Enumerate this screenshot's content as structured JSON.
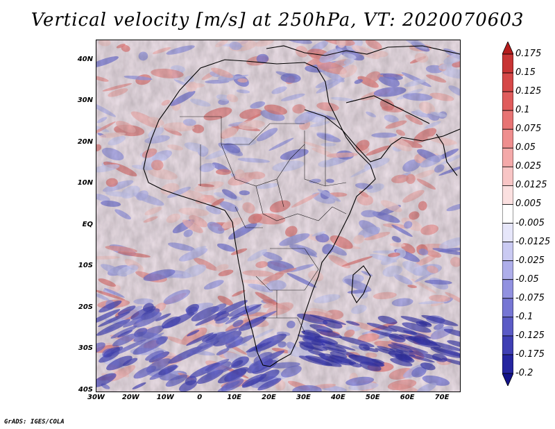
{
  "title": "Vertical velocity [m/s] at 250hPa, VT: 2020070603",
  "credit": "GrADS: IGES/COLA",
  "map": {
    "projection": "latlon",
    "lon_range": [
      -30,
      75
    ],
    "lat_range": [
      -40,
      45
    ],
    "lon_ticks": [
      "30W",
      "20W",
      "10W",
      "0",
      "10E",
      "20E",
      "30E",
      "40E",
      "50E",
      "60E",
      "70E"
    ],
    "lat_ticks": [
      "40S",
      "30S",
      "20S",
      "10S",
      "EQ",
      "10N",
      "20N",
      "30N",
      "40N"
    ],
    "lon_values": [
      -30,
      -20,
      -10,
      0,
      10,
      20,
      30,
      40,
      50,
      60,
      70
    ],
    "lat_values": [
      -40,
      -30,
      -20,
      -10,
      0,
      10,
      20,
      30,
      40
    ]
  },
  "colorbar": {
    "labels": [
      "0.175",
      "0.15",
      "0.125",
      "0.1",
      "0.075",
      "0.05",
      "0.025",
      "0.0125",
      "0.005",
      "-0.005",
      "-0.0125",
      "-0.025",
      "-0.05",
      "-0.075",
      "-0.1",
      "-0.125",
      "-0.175",
      "-0.2"
    ],
    "colors": [
      "#b51c1c",
      "#c83434",
      "#d64848",
      "#e05c5c",
      "#e87474",
      "#ef8e8e",
      "#f4a9a9",
      "#f8c5c5",
      "#fbe0e0",
      "#ffffff",
      "#e6e6fa",
      "#cacaf2",
      "#aeaeea",
      "#9191e0",
      "#7676d4",
      "#5b5bc6",
      "#3f3fb4",
      "#2525a0",
      "#13138a"
    ]
  }
}
